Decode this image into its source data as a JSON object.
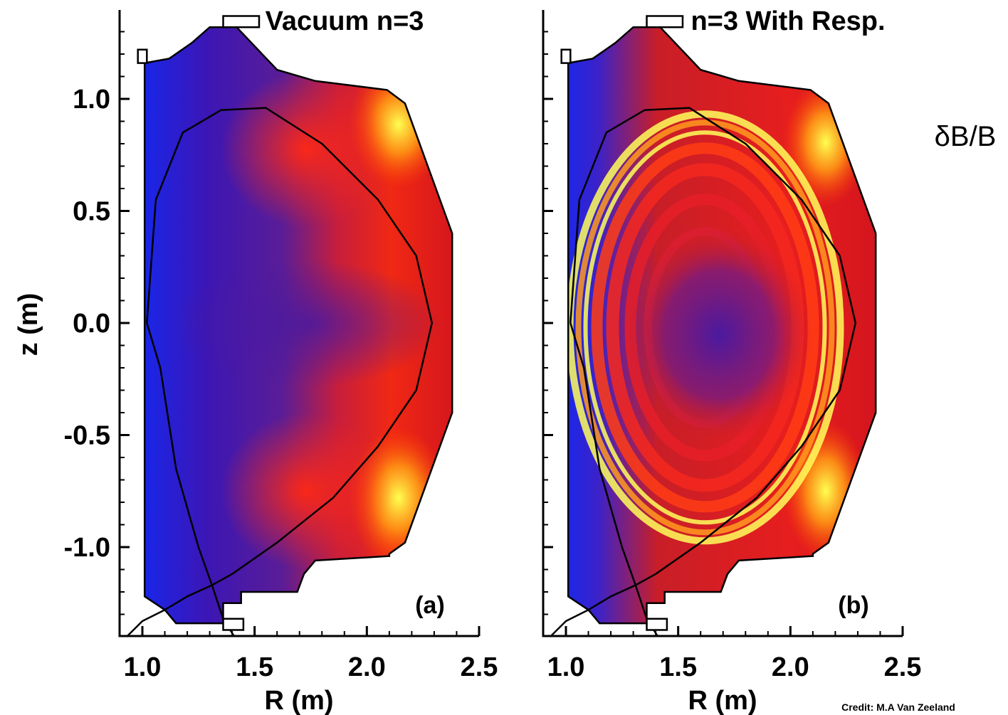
{
  "chart_data": [
    {
      "type": "heatmap",
      "panel_label": "(a)",
      "title": "Vacuum n=3",
      "xlabel": "R (m)",
      "ylabel": "z (m)",
      "x_ticks": [
        "1.0",
        "1.5",
        "2.0",
        "2.5"
      ],
      "y_ticks": [
        "1.0",
        "0.5",
        "0.0",
        "-0.5",
        "-1.0"
      ],
      "xlim": [
        0.93,
        2.5
      ],
      "ylim": [
        -1.4,
        1.4
      ],
      "quantity": "δB/B",
      "colormap": [
        "#1428f0",
        "#3c16b4",
        "#5a1d96",
        "#e61e1e",
        "#ff8c00",
        "#ffff46"
      ],
      "boundary": [
        {
          "R": 1.02,
          "z": 0.0
        },
        {
          "R": 1.06,
          "z": 0.55
        },
        {
          "R": 1.18,
          "z": 0.85
        },
        {
          "R": 1.35,
          "z": 0.95
        },
        {
          "R": 1.55,
          "z": 0.96
        },
        {
          "R": 1.8,
          "z": 0.8
        },
        {
          "R": 2.05,
          "z": 0.55
        },
        {
          "R": 2.22,
          "z": 0.3
        },
        {
          "R": 2.29,
          "z": 0.0
        },
        {
          "R": 2.22,
          "z": -0.3
        },
        {
          "R": 2.05,
          "z": -0.55
        },
        {
          "R": 1.85,
          "z": -0.78
        },
        {
          "R": 1.6,
          "z": -0.98
        },
        {
          "R": 1.4,
          "z": -1.12
        },
        {
          "R": 1.31,
          "z": -1.17
        },
        {
          "R": 1.2,
          "z": -1.22
        },
        {
          "R": 1.1,
          "z": -1.28
        },
        {
          "R": 1.0,
          "z": -1.33
        },
        {
          "R": 0.93,
          "z": -1.4
        }
      ],
      "second_leg": [
        {
          "R": 1.08,
          "z": -0.2
        },
        {
          "R": 1.15,
          "z": -0.65
        },
        {
          "R": 1.25,
          "z": -1.0
        },
        {
          "R": 1.31,
          "z": -1.17
        },
        {
          "R": 1.36,
          "z": -1.32
        },
        {
          "R": 1.41,
          "z": -1.4
        }
      ]
    },
    {
      "type": "heatmap",
      "panel_label": "(b)",
      "title": "n=3 With Resp.",
      "xlabel": "R (m)",
      "ylabel": "",
      "x_ticks": [
        "1.0",
        "1.5",
        "2.0",
        "2.5"
      ],
      "y_ticks": [],
      "xlim": [
        0.93,
        2.5
      ],
      "ylim": [
        -1.4,
        1.4
      ],
      "quantity": "δB/B",
      "colormap": [
        "#1428f0",
        "#3c16b4",
        "#5a1d96",
        "#e61e1e",
        "#ff8c00",
        "#ffff46"
      ],
      "boundary": [
        {
          "R": 1.02,
          "z": 0.0
        },
        {
          "R": 1.06,
          "z": 0.55
        },
        {
          "R": 1.18,
          "z": 0.85
        },
        {
          "R": 1.35,
          "z": 0.95
        },
        {
          "R": 1.55,
          "z": 0.96
        },
        {
          "R": 1.8,
          "z": 0.8
        },
        {
          "R": 2.05,
          "z": 0.55
        },
        {
          "R": 2.22,
          "z": 0.3
        },
        {
          "R": 2.29,
          "z": 0.0
        },
        {
          "R": 2.22,
          "z": -0.3
        },
        {
          "R": 2.05,
          "z": -0.55
        },
        {
          "R": 1.85,
          "z": -0.78
        },
        {
          "R": 1.6,
          "z": -0.98
        },
        {
          "R": 1.4,
          "z": -1.12
        },
        {
          "R": 1.31,
          "z": -1.17
        },
        {
          "R": 1.2,
          "z": -1.22
        },
        {
          "R": 1.1,
          "z": -1.28
        },
        {
          "R": 1.0,
          "z": -1.33
        },
        {
          "R": 0.93,
          "z": -1.4
        }
      ],
      "second_leg": [
        {
          "R": 1.08,
          "z": -0.2
        },
        {
          "R": 1.15,
          "z": -0.65
        },
        {
          "R": 1.25,
          "z": -1.0
        },
        {
          "R": 1.31,
          "z": -1.17
        },
        {
          "R": 1.36,
          "z": -1.32
        },
        {
          "R": 1.41,
          "z": -1.4
        }
      ]
    }
  ],
  "colorbar_label": "δB/B",
  "credit": "Credit: M.A Van Zeeland"
}
